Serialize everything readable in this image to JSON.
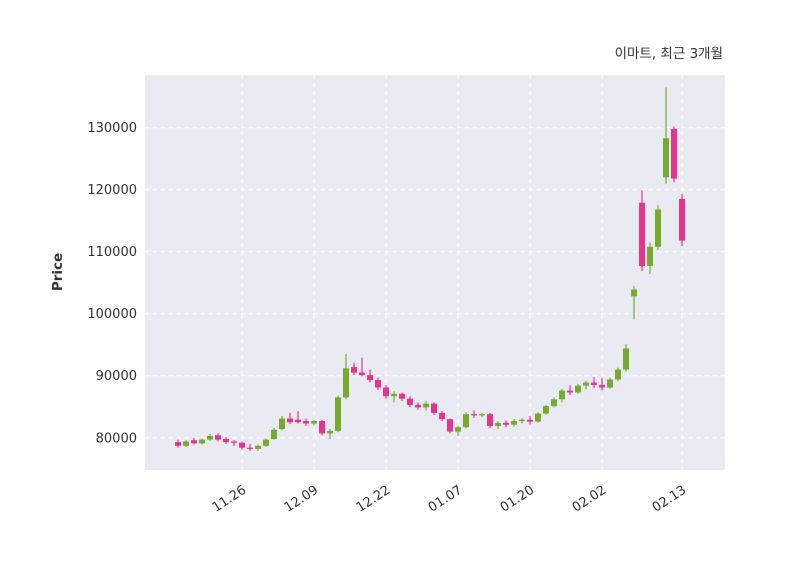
{
  "figure": {
    "background": "#ffffff"
  },
  "chart_data": {
    "type": "candlestick",
    "title": "이마트, 최근 3개월",
    "ylabel": "Price",
    "xlabel": "",
    "legend": "none",
    "grid": "dashed-white-on-gray",
    "plot_bg": "#eaeaf2",
    "colors": {
      "up": "#77ab30",
      "down": "#e6348c",
      "text": "#333333",
      "grid_line": "#ffffff"
    },
    "ylim": [
      74800,
      138500
    ],
    "yticks": [
      "80000",
      "90000",
      "100000",
      "110000",
      "120000",
      "130000"
    ],
    "ytick_values": [
      80000,
      90000,
      100000,
      110000,
      120000,
      130000
    ],
    "xticks": [
      {
        "index": 8,
        "label": "11.26"
      },
      {
        "index": 17,
        "label": "12.09"
      },
      {
        "index": 26,
        "label": "12.22"
      },
      {
        "index": 35,
        "label": "01.07"
      },
      {
        "index": 44,
        "label": "01.20"
      },
      {
        "index": 53,
        "label": "02.02"
      },
      {
        "index": 63,
        "label": "02.13"
      }
    ],
    "ohlc": {
      "open": [
        79300,
        78700,
        79600,
        79100,
        79700,
        80400,
        79800,
        79400,
        79200,
        78400,
        78200,
        78700,
        79800,
        81400,
        83100,
        82900,
        82700,
        82300,
        82700,
        80700,
        81100,
        86500,
        91400,
        90500,
        90100,
        89300,
        88100,
        86700,
        87100,
        86300,
        85300,
        84900,
        85500,
        84000,
        83000,
        81000,
        81700,
        83800,
        83600,
        83800,
        81900,
        82400,
        82100,
        82700,
        82900,
        82600,
        83900,
        85100,
        86200,
        87600,
        87300,
        88400,
        88900,
        88500,
        88100,
        89400,
        91000,
        102800,
        117900,
        107700,
        110800,
        122000,
        129800,
        118500
      ],
      "high": [
        79700,
        79600,
        80000,
        79900,
        80600,
        80700,
        80100,
        79600,
        79400,
        79000,
        78900,
        79900,
        81600,
        83500,
        84000,
        84300,
        83100,
        82900,
        82900,
        81400,
        86800,
        93500,
        92100,
        92900,
        91000,
        89700,
        88500,
        87500,
        87300,
        86700,
        85700,
        85900,
        85700,
        84300,
        83100,
        81900,
        84100,
        84400,
        84000,
        84000,
        82700,
        82800,
        83000,
        83200,
        83500,
        84100,
        85300,
        86500,
        87900,
        88500,
        88700,
        89200,
        89800,
        89600,
        89700,
        91300,
        95100,
        104500,
        119900,
        111500,
        117500,
        136500,
        130200,
        119300
      ],
      "low": [
        78400,
        78500,
        78900,
        78900,
        79500,
        79400,
        79000,
        78700,
        78100,
        77900,
        77900,
        78500,
        79700,
        81200,
        82200,
        82300,
        81900,
        82000,
        80400,
        79800,
        80900,
        86200,
        90100,
        89900,
        88900,
        87700,
        86300,
        85700,
        85900,
        84900,
        84500,
        84400,
        83700,
        82700,
        80700,
        80300,
        81500,
        83200,
        83300,
        81500,
        81400,
        81700,
        81800,
        82300,
        82100,
        82400,
        83700,
        84900,
        85700,
        86900,
        87100,
        87800,
        88000,
        87600,
        87900,
        89100,
        90700,
        99100,
        106900,
        106400,
        110300,
        121000,
        121200,
        110900
      ],
      "close": [
        78700,
        79400,
        79100,
        79700,
        80300,
        79700,
        79300,
        79200,
        78400,
        78200,
        78700,
        79700,
        81300,
        83100,
        82500,
        82500,
        82300,
        82700,
        80700,
        81100,
        86500,
        91200,
        90500,
        90100,
        89300,
        88100,
        86700,
        87100,
        86300,
        85300,
        84900,
        85500,
        84000,
        83000,
        81000,
        81700,
        83800,
        83600,
        83800,
        81900,
        82400,
        82100,
        82700,
        82900,
        82600,
        83900,
        85100,
        86200,
        87600,
        87300,
        88400,
        88900,
        88500,
        88100,
        89400,
        91000,
        94400,
        103900,
        107700,
        110800,
        116800,
        128300,
        121800,
        111800
      ]
    }
  }
}
